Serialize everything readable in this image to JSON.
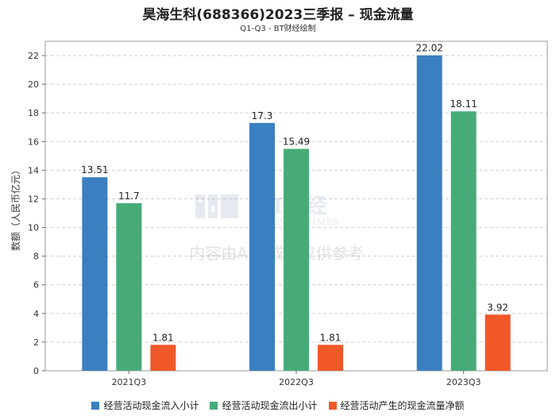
{
  "title": "昊海生科(688366)2023三季报 – 现金流量",
  "subtitle": "Q1-Q3 - BT财经绘制",
  "watermark": {
    "logo_text": "BT财经",
    "logo_sub": "BUSINESSTIMES",
    "notice": "内容由AI生成，仅供参考"
  },
  "chart_data": {
    "type": "bar",
    "categories": [
      "2021Q3",
      "2022Q3",
      "2023Q3"
    ],
    "series": [
      {
        "name": "经营活动现金流入小计",
        "values": [
          13.51,
          17.3,
          22.02
        ],
        "color": "#3a7fc0"
      },
      {
        "name": "经营活动现金流出小计",
        "values": [
          11.7,
          15.49,
          18.11
        ],
        "color": "#47ab78"
      },
      {
        "name": "经营活动产生的现金流量净额",
        "values": [
          1.81,
          1.81,
          3.92
        ],
        "color": "#f0582a"
      }
    ],
    "ylabel": "数额（人民币亿元）",
    "ylim": [
      0,
      23
    ],
    "yticks": [
      0,
      2,
      4,
      6,
      8,
      10,
      12,
      14,
      16,
      18,
      20,
      22
    ],
    "grid": true,
    "legend_position": "bottom"
  }
}
